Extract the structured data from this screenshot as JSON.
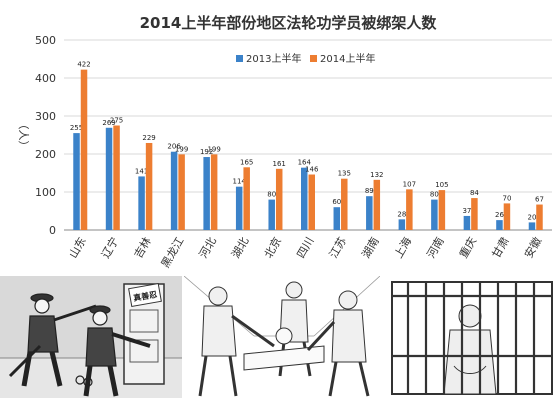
{
  "chart_data": {
    "type": "bar",
    "title": "2014上半年部份地区法轮功学员被绑架人数",
    "ylabel": "（人）",
    "xlabel": "",
    "ylim": [
      0,
      500
    ],
    "yticks": [
      0,
      100,
      200,
      300,
      400,
      500
    ],
    "categories": [
      "山东",
      "辽宁",
      "吉林",
      "黑龙江",
      "河北",
      "湖北",
      "北京",
      "四川",
      "江苏",
      "湖南",
      "上海",
      "河南",
      "重庆",
      "甘肃",
      "安徽"
    ],
    "series": [
      {
        "name": "2013上半年",
        "color": "#3b82c9",
        "values": [
          255,
          269,
          141,
          206,
          192,
          114,
          80,
          164,
          60,
          89,
          28,
          80,
          37,
          26,
          20
        ]
      },
      {
        "name": "2014上半年",
        "color": "#ed7d31",
        "values": [
          422,
          275,
          229,
          199,
          199,
          165,
          161,
          146,
          135,
          132,
          107,
          105,
          84,
          70,
          67
        ]
      }
    ],
    "legend_position": "top-center",
    "grid": true
  },
  "illustrations": {
    "sign_text": "真善忍",
    "bg_color": "#d9d9d9",
    "line_color": "#333333"
  }
}
